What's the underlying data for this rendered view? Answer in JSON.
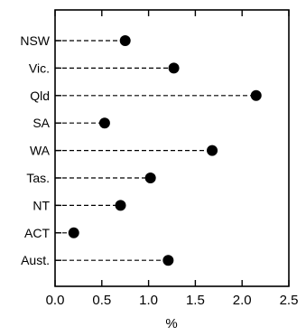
{
  "chart_data": {
    "type": "dot",
    "title": "",
    "xlabel": "%",
    "ylabel": "",
    "xlim": [
      0,
      2.5
    ],
    "x_ticks": [
      "0.0",
      "0.5",
      "1.0",
      "1.5",
      "2.0",
      "2.5"
    ],
    "categories": [
      "NSW",
      "Vic.",
      "Qld",
      "SA",
      "WA",
      "Tas.",
      "NT",
      "ACT",
      "Aust."
    ],
    "values": [
      0.75,
      1.27,
      2.15,
      0.53,
      1.68,
      1.02,
      0.7,
      0.2,
      1.21
    ],
    "grid": false,
    "legend": "none",
    "colors": {
      "marker": "#000000",
      "line": "#000000",
      "axis": "#000000",
      "background": "#ffffff"
    }
  }
}
